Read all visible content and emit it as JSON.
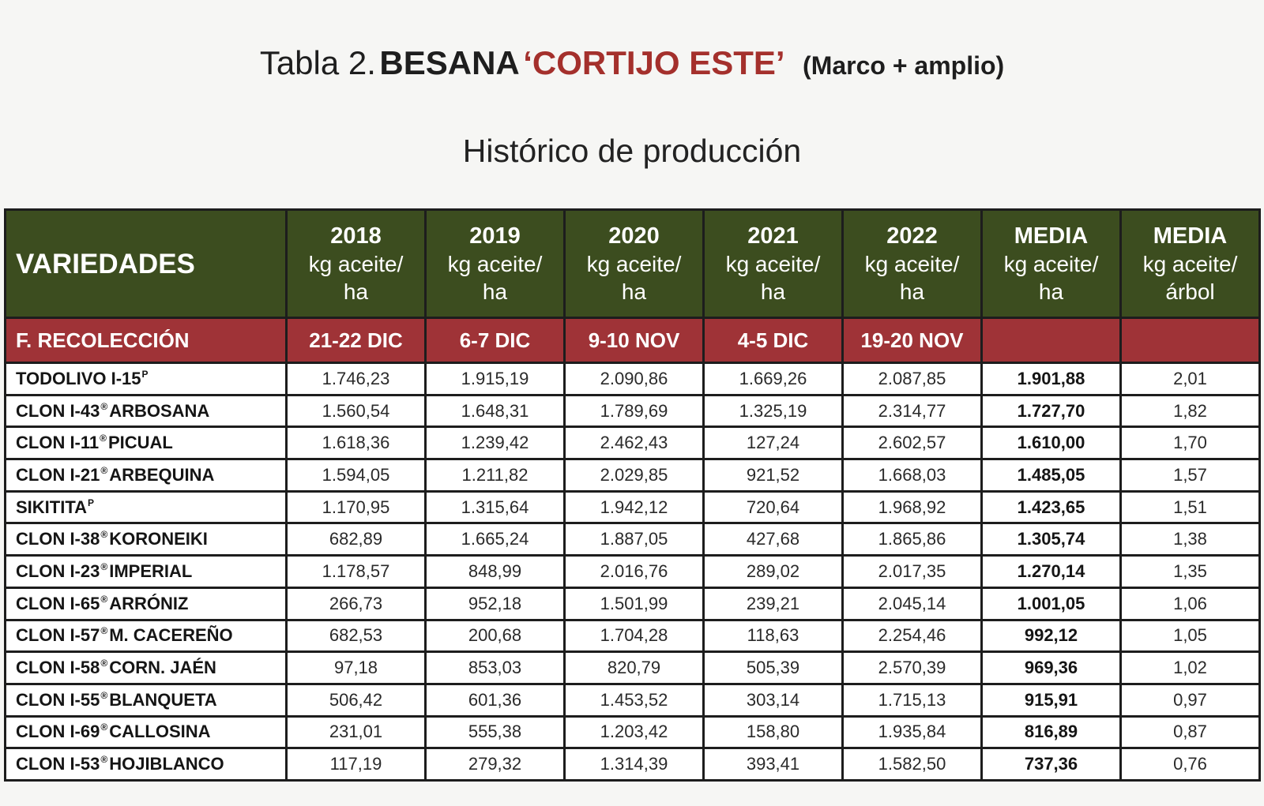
{
  "title": {
    "prefix": "Tabla 2.",
    "farm": "BESANA",
    "estate": "‘CORTIJO ESTE’",
    "note": "(Marco + amplio)"
  },
  "subtitle": "Histórico de producción",
  "table": {
    "header": {
      "varieties": "VARIEDADES",
      "columns": [
        {
          "top": "2018",
          "unit1": "kg aceite/",
          "unit2": "ha"
        },
        {
          "top": "2019",
          "unit1": "kg aceite/",
          "unit2": "ha"
        },
        {
          "top": "2020",
          "unit1": "kg aceite/",
          "unit2": "ha"
        },
        {
          "top": "2021",
          "unit1": "kg aceite/",
          "unit2": "ha"
        },
        {
          "top": "2022",
          "unit1": "kg aceite/",
          "unit2": "ha"
        },
        {
          "top": "MEDIA",
          "unit1": "kg aceite/",
          "unit2": "ha"
        },
        {
          "top": "MEDIA",
          "unit1": "kg aceite/",
          "unit2": "árbol"
        }
      ]
    },
    "harvest": {
      "label": "F. RECOLECCIÓN",
      "dates": [
        "21-22 DIC",
        "6-7 DIC",
        "9-10 NOV",
        "4-5 DIC",
        "19-20 NOV",
        "",
        ""
      ]
    },
    "rows": [
      {
        "a": "TODOLIVO I-15",
        "sup": "P",
        "b": "",
        "values": [
          "1.746,23",
          "1.915,19",
          "2.090,86",
          "1.669,26",
          "2.087,85",
          "1.901,88",
          "2,01"
        ]
      },
      {
        "a": "CLON I-43",
        "sup": "®",
        "b": "ARBOSANA",
        "values": [
          "1.560,54",
          "1.648,31",
          "1.789,69",
          "1.325,19",
          "2.314,77",
          "1.727,70",
          "1,82"
        ]
      },
      {
        "a": "CLON I-11",
        "sup": "®",
        "b": "PICUAL",
        "values": [
          "1.618,36",
          "1.239,42",
          "2.462,43",
          "127,24",
          "2.602,57",
          "1.610,00",
          "1,70"
        ]
      },
      {
        "a": "CLON I-21",
        "sup": "®",
        "b": "ARBEQUINA",
        "values": [
          "1.594,05",
          "1.211,82",
          "2.029,85",
          "921,52",
          "1.668,03",
          "1.485,05",
          "1,57"
        ]
      },
      {
        "a": "SIKITITA",
        "sup": "P",
        "b": "",
        "values": [
          "1.170,95",
          "1.315,64",
          "1.942,12",
          "720,64",
          "1.968,92",
          "1.423,65",
          "1,51"
        ]
      },
      {
        "a": "CLON I-38",
        "sup": "®",
        "b": "KORONEIKI",
        "values": [
          "682,89",
          "1.665,24",
          "1.887,05",
          "427,68",
          "1.865,86",
          "1.305,74",
          "1,38"
        ]
      },
      {
        "a": "CLON I-23",
        "sup": "®",
        "b": "IMPERIAL",
        "values": [
          "1.178,57",
          "848,99",
          "2.016,76",
          "289,02",
          "2.017,35",
          "1.270,14",
          "1,35"
        ]
      },
      {
        "a": "CLON I-65",
        "sup": "®",
        "b": "ARRÓNIZ",
        "values": [
          "266,73",
          "952,18",
          "1.501,99",
          "239,21",
          "2.045,14",
          "1.001,05",
          "1,06"
        ]
      },
      {
        "a": "CLON I-57",
        "sup": "®",
        "b": "M. CACEREÑO",
        "values": [
          "682,53",
          "200,68",
          "1.704,28",
          "118,63",
          "2.254,46",
          "992,12",
          "1,05"
        ]
      },
      {
        "a": "CLON I-58",
        "sup": "®",
        "b": "CORN. JAÉN",
        "values": [
          "97,18",
          "853,03",
          "820,79",
          "505,39",
          "2.570,39",
          "969,36",
          "1,02"
        ]
      },
      {
        "a": "CLON I-55",
        "sup": "®",
        "b": "BLANQUETA",
        "values": [
          "506,42",
          "601,36",
          "1.453,52",
          "303,14",
          "1.715,13",
          "915,91",
          "0,97"
        ]
      },
      {
        "a": "CLON I-69",
        "sup": "®",
        "b": "CALLOSINA",
        "values": [
          "231,01",
          "555,38",
          "1.203,42",
          "158,80",
          "1.935,84",
          "816,89",
          "0,87"
        ]
      },
      {
        "a": "CLON I-53",
        "sup": "®",
        "b": "HOJIBLANCO",
        "values": [
          "117,19",
          "279,32",
          "1.314,39",
          "393,41",
          "1.582,50",
          "737,36",
          "0,76"
        ]
      }
    ]
  },
  "colors": {
    "header_bg": "#3c4d1f",
    "harvest_bg": "#9f3337",
    "title_accent": "#a4302c"
  }
}
